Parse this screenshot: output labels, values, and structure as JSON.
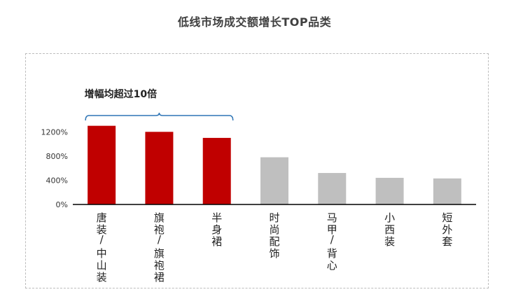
{
  "title": "低线市场成交额增长TOP品类",
  "annotation": "增幅均超过10倍",
  "colors": {
    "highlight": "#c00000",
    "normal": "#bfbfbf",
    "bracket": "#2e75b6",
    "axis": "#000000"
  },
  "chart_data": {
    "type": "bar",
    "title": "低线市场成交额增长TOP品类",
    "categories": [
      "唐装/中山装",
      "旗袍/旗袍裙",
      "半身裙",
      "时尚配饰",
      "马甲/背心",
      "小西装",
      "短外套"
    ],
    "values": [
      1300,
      1200,
      1100,
      780,
      520,
      440,
      430
    ],
    "highlight": [
      true,
      true,
      true,
      false,
      false,
      false,
      false
    ],
    "ylim": [
      0,
      1400
    ],
    "yticks": [
      0,
      400,
      800,
      1200
    ],
    "ytick_labels": [
      "0%",
      "400%",
      "800%",
      "1200%"
    ],
    "xlabel": "",
    "ylabel": "",
    "grid": false,
    "annotation": "增幅均超过10倍"
  }
}
